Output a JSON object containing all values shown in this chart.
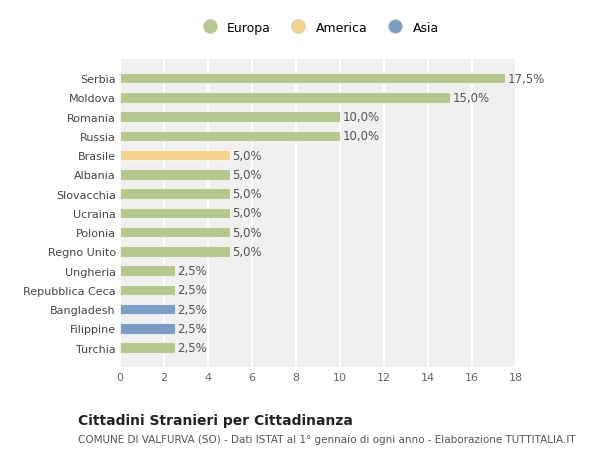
{
  "countries": [
    "Serbia",
    "Moldova",
    "Romania",
    "Russia",
    "Brasile",
    "Albania",
    "Slovacchia",
    "Ucraina",
    "Polonia",
    "Regno Unito",
    "Ungheria",
    "Repubblica Ceca",
    "Bangladesh",
    "Filippine",
    "Turchia"
  ],
  "values": [
    17.5,
    15.0,
    10.0,
    10.0,
    5.0,
    5.0,
    5.0,
    5.0,
    5.0,
    5.0,
    2.5,
    2.5,
    2.5,
    2.5,
    2.5
  ],
  "continents": [
    "Europa",
    "Europa",
    "Europa",
    "Europa",
    "America",
    "Europa",
    "Europa",
    "Europa",
    "Europa",
    "Europa",
    "Europa",
    "Europa",
    "Asia",
    "Asia",
    "Europa"
  ],
  "color_europa": "#b5c98e",
  "color_america": "#f5d48a",
  "color_asia": "#7b9fc4",
  "bar_edge_color": "#ffffff",
  "bg_color": "#ffffff",
  "grid_color": "#e8e8e8",
  "plot_bg_color": "#f0f0f0",
  "title": "Cittadini Stranieri per Cittadinanza",
  "subtitle": "COMUNE DI VALFURVA (SO) - Dati ISTAT al 1° gennaio di ogni anno - Elaborazione TUTTITALIA.IT",
  "xlim": [
    0,
    18
  ],
  "xticks": [
    0,
    2,
    4,
    6,
    8,
    10,
    12,
    14,
    16,
    18
  ],
  "label_fontsize": 8.5,
  "tick_fontsize": 8,
  "ytick_fontsize": 8,
  "title_fontsize": 10,
  "subtitle_fontsize": 7.5,
  "legend_labels": [
    "Europa",
    "America",
    "Asia"
  ],
  "legend_colors": [
    "#b5c98e",
    "#f5d48a",
    "#7b9fc4"
  ],
  "bar_height": 0.55
}
